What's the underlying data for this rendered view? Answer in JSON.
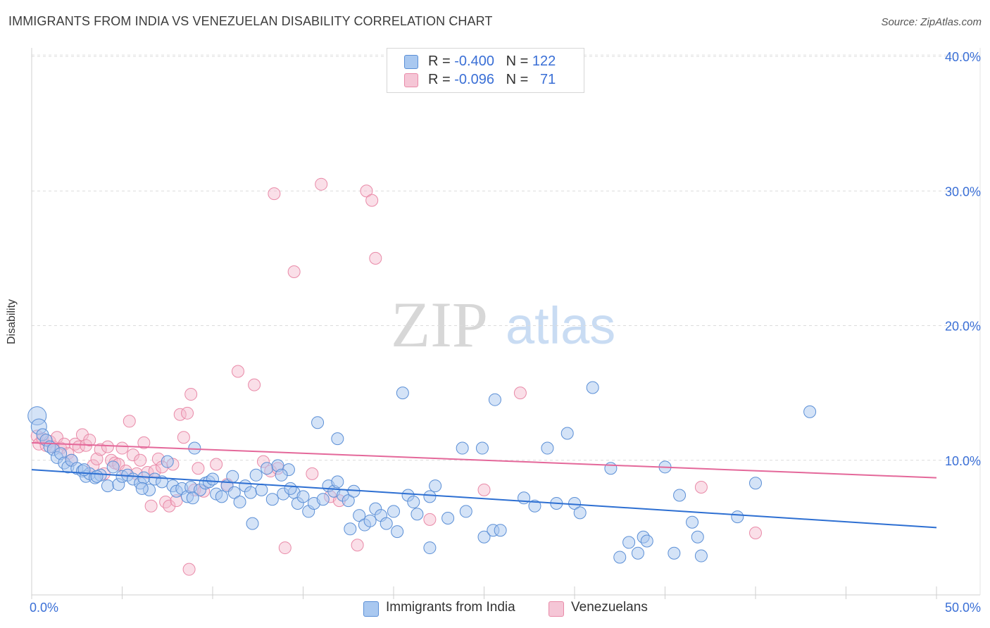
{
  "title": "IMMIGRANTS FROM INDIA VS VENEZUELAN DISABILITY CORRELATION CHART",
  "source": "Source: ZipAtlas.com",
  "watermark": {
    "zip": "ZIP",
    "atlas": "atlas"
  },
  "colors": {
    "india_fill": "#a9c8f0",
    "india_stroke": "#5b8fd6",
    "india_line": "#2d6fd2",
    "ven_fill": "#f5b8cb",
    "ven_stroke": "#e98aa8",
    "ven_line": "#e4689a",
    "axis_text": "#3a6fd6"
  },
  "legend": {
    "rows": [
      {
        "r_label": "R =",
        "r_value": "-0.400",
        "n_label": "N =",
        "n_value": "122"
      },
      {
        "r_label": "R =",
        "r_value": "-0.096",
        "n_label": "N =",
        "n_value": "71"
      }
    ]
  },
  "bottom_legend": {
    "india": "Immigrants from India",
    "venezuelans": "Venezuelans"
  },
  "chart_data": {
    "type": "scatter",
    "title": "IMMIGRANTS FROM INDIA VS VENEZUELAN DISABILITY CORRELATION CHART",
    "xlabel": "",
    "ylabel": "Disability",
    "xlim": [
      0,
      50
    ],
    "ylim": [
      0,
      40
    ],
    "x_tick_labels": [
      "0.0%",
      "50.0%"
    ],
    "y_ticks": [
      10,
      20,
      30,
      40
    ],
    "y_tick_labels": [
      "10.0%",
      "20.0%",
      "30.0%",
      "40.0%"
    ],
    "grid": true,
    "legend_position": "top-center",
    "series": [
      {
        "name": "Immigrants from India",
        "r": -0.4,
        "n": 122,
        "trend": {
          "x": [
            0,
            50
          ],
          "y": [
            9.3,
            5.0
          ]
        },
        "points": [
          [
            0.3,
            13.3
          ],
          [
            0.4,
            12.5
          ],
          [
            0.6,
            11.9
          ],
          [
            0.8,
            11.5
          ],
          [
            1.0,
            11.0
          ],
          [
            1.2,
            10.8
          ],
          [
            1.4,
            10.2
          ],
          [
            1.6,
            10.5
          ],
          [
            1.8,
            9.8
          ],
          [
            2.0,
            9.5
          ],
          [
            2.2,
            10.0
          ],
          [
            2.5,
            9.4
          ],
          [
            2.8,
            9.2
          ],
          [
            3.0,
            8.8
          ],
          [
            3.2,
            9.0
          ],
          [
            3.5,
            8.7
          ],
          [
            3.8,
            8.9
          ],
          [
            4.2,
            8.1
          ],
          [
            4.5,
            9.5
          ],
          [
            4.8,
            8.2
          ],
          [
            5.0,
            8.8
          ],
          [
            5.3,
            8.9
          ],
          [
            5.6,
            8.6
          ],
          [
            6.0,
            8.3
          ],
          [
            6.2,
            8.7
          ],
          [
            6.5,
            7.8
          ],
          [
            6.8,
            8.6
          ],
          [
            7.2,
            8.4
          ],
          [
            7.5,
            9.9
          ],
          [
            7.8,
            8.1
          ],
          [
            8.0,
            7.7
          ],
          [
            8.3,
            7.9
          ],
          [
            8.6,
            7.3
          ],
          [
            8.8,
            8.0
          ],
          [
            9.0,
            10.9
          ],
          [
            9.3,
            7.8
          ],
          [
            9.6,
            8.3
          ],
          [
            9.8,
            8.4
          ],
          [
            10.2,
            7.5
          ],
          [
            10.5,
            7.3
          ],
          [
            10.8,
            8.1
          ],
          [
            11.2,
            7.6
          ],
          [
            11.5,
            6.9
          ],
          [
            11.8,
            8.1
          ],
          [
            12.1,
            7.6
          ],
          [
            12.4,
            8.9
          ],
          [
            12.7,
            7.8
          ],
          [
            13.0,
            9.4
          ],
          [
            13.3,
            7.1
          ],
          [
            13.6,
            9.6
          ],
          [
            13.9,
            7.5
          ],
          [
            14.2,
            9.3
          ],
          [
            14.5,
            7.6
          ],
          [
            14.7,
            6.8
          ],
          [
            15.0,
            7.3
          ],
          [
            15.3,
            6.2
          ],
          [
            15.6,
            6.8
          ],
          [
            15.8,
            12.8
          ],
          [
            16.1,
            7.1
          ],
          [
            16.4,
            8.1
          ],
          [
            16.7,
            7.7
          ],
          [
            16.9,
            11.6
          ],
          [
            17.2,
            7.4
          ],
          [
            17.5,
            7.0
          ],
          [
            17.8,
            7.7
          ],
          [
            18.1,
            5.9
          ],
          [
            18.4,
            5.2
          ],
          [
            18.7,
            5.5
          ],
          [
            19.0,
            6.4
          ],
          [
            19.3,
            5.9
          ],
          [
            19.6,
            5.3
          ],
          [
            20.0,
            6.2
          ],
          [
            20.2,
            4.7
          ],
          [
            20.8,
            7.4
          ],
          [
            21.1,
            6.9
          ],
          [
            21.3,
            6.0
          ],
          [
            22.0,
            7.3
          ],
          [
            22.3,
            8.1
          ],
          [
            22.0,
            3.5
          ],
          [
            23.0,
            5.7
          ],
          [
            23.8,
            10.9
          ],
          [
            24.0,
            6.2
          ],
          [
            24.9,
            10.9
          ],
          [
            25.0,
            4.3
          ],
          [
            25.5,
            4.8
          ],
          [
            25.9,
            4.8
          ],
          [
            25.6,
            14.5
          ],
          [
            27.2,
            7.2
          ],
          [
            27.8,
            6.6
          ],
          [
            28.5,
            10.9
          ],
          [
            29.0,
            6.8
          ],
          [
            29.6,
            12.0
          ],
          [
            30.0,
            6.8
          ],
          [
            30.3,
            6.1
          ],
          [
            31.0,
            15.4
          ],
          [
            32.0,
            9.4
          ],
          [
            32.5,
            2.8
          ],
          [
            33.0,
            3.9
          ],
          [
            33.5,
            3.1
          ],
          [
            33.8,
            4.3
          ],
          [
            34.0,
            4.0
          ],
          [
            35.0,
            9.5
          ],
          [
            35.5,
            3.1
          ],
          [
            35.8,
            7.4
          ],
          [
            36.5,
            5.4
          ],
          [
            36.8,
            4.3
          ],
          [
            37.0,
            2.9
          ],
          [
            39.0,
            5.8
          ],
          [
            40.0,
            8.3
          ],
          [
            43.0,
            13.6
          ],
          [
            2.9,
            9.3
          ],
          [
            3.6,
            8.8
          ],
          [
            20.5,
            15.0
          ],
          [
            16.9,
            8.4
          ],
          [
            11.1,
            8.8
          ],
          [
            13.8,
            8.9
          ],
          [
            12.2,
            5.3
          ],
          [
            17.6,
            4.9
          ],
          [
            8.9,
            7.2
          ],
          [
            10.0,
            8.6
          ],
          [
            14.3,
            7.9
          ],
          [
            6.1,
            7.9
          ]
        ]
      },
      {
        "name": "Venezuelans",
        "r": -0.096,
        "n": 71,
        "trend": {
          "x": [
            0,
            50
          ],
          "y": [
            11.3,
            8.7
          ]
        },
        "points": [
          [
            0.3,
            11.8
          ],
          [
            0.4,
            11.2
          ],
          [
            0.6,
            11.6
          ],
          [
            0.8,
            11.1
          ],
          [
            1.0,
            11.4
          ],
          [
            1.2,
            11.0
          ],
          [
            1.4,
            11.7
          ],
          [
            1.6,
            10.9
          ],
          [
            1.8,
            11.2
          ],
          [
            2.0,
            10.5
          ],
          [
            2.2,
            10.0
          ],
          [
            2.4,
            11.2
          ],
          [
            2.6,
            11.0
          ],
          [
            2.8,
            11.9
          ],
          [
            3.0,
            11.1
          ],
          [
            3.2,
            11.5
          ],
          [
            3.4,
            9.6
          ],
          [
            3.6,
            10.1
          ],
          [
            3.8,
            10.8
          ],
          [
            4.0,
            9.0
          ],
          [
            4.2,
            11.0
          ],
          [
            4.4,
            10.0
          ],
          [
            4.6,
            9.8
          ],
          [
            4.8,
            9.7
          ],
          [
            5.0,
            10.9
          ],
          [
            5.2,
            9.2
          ],
          [
            5.4,
            12.9
          ],
          [
            5.6,
            10.4
          ],
          [
            5.8,
            9.0
          ],
          [
            6.0,
            10.0
          ],
          [
            6.2,
            11.3
          ],
          [
            6.4,
            9.1
          ],
          [
            6.6,
            6.6
          ],
          [
            6.8,
            9.2
          ],
          [
            7.0,
            10.1
          ],
          [
            7.2,
            9.5
          ],
          [
            7.4,
            6.9
          ],
          [
            7.6,
            6.6
          ],
          [
            7.8,
            9.7
          ],
          [
            8.0,
            7.0
          ],
          [
            8.2,
            13.4
          ],
          [
            8.4,
            11.7
          ],
          [
            8.6,
            13.5
          ],
          [
            8.8,
            14.9
          ],
          [
            9.0,
            7.8
          ],
          [
            9.2,
            9.4
          ],
          [
            9.5,
            7.7
          ],
          [
            10.2,
            9.7
          ],
          [
            10.8,
            8.2
          ],
          [
            11.4,
            16.6
          ],
          [
            12.3,
            15.6
          ],
          [
            12.8,
            9.9
          ],
          [
            13.2,
            9.2
          ],
          [
            13.4,
            29.8
          ],
          [
            13.6,
            9.4
          ],
          [
            14.0,
            3.5
          ],
          [
            14.5,
            24.0
          ],
          [
            15.5,
            9.0
          ],
          [
            16.0,
            30.5
          ],
          [
            16.5,
            7.3
          ],
          [
            17.0,
            7.0
          ],
          [
            18.0,
            3.7
          ],
          [
            18.5,
            30.0
          ],
          [
            18.8,
            29.3
          ],
          [
            19.0,
            25.0
          ],
          [
            8.7,
            1.9
          ],
          [
            22.0,
            5.6
          ],
          [
            25.0,
            7.8
          ],
          [
            27.0,
            15.0
          ],
          [
            37.0,
            8.0
          ],
          [
            40.0,
            4.6
          ]
        ]
      }
    ]
  }
}
